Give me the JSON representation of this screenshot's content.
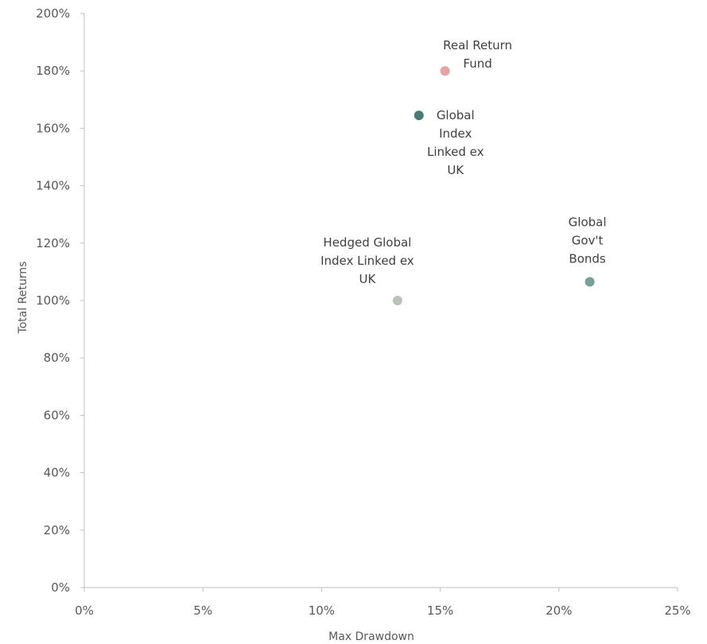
{
  "chart_data": {
    "type": "scatter",
    "title": "",
    "xlabel": "Max Drawdown",
    "ylabel": "Total Returns",
    "xlim": [
      0,
      25
    ],
    "ylim": [
      0,
      200
    ],
    "x_ticks": [
      0,
      5,
      10,
      15,
      20,
      25
    ],
    "x_tick_labels": [
      "0%",
      "5%",
      "10%",
      "15%",
      "20%",
      "25%"
    ],
    "y_ticks": [
      0,
      20,
      40,
      60,
      80,
      100,
      120,
      140,
      160,
      180,
      200
    ],
    "y_tick_labels": [
      "0%",
      "20%",
      "40%",
      "60%",
      "80%",
      "100%",
      "120%",
      "140%",
      "160%",
      "180%",
      "200%"
    ],
    "grid": false,
    "legend": "none",
    "points": [
      {
        "label_lines": [
          "Real Return",
          "Fund"
        ],
        "x": 15.2,
        "y": 180,
        "color": "#e6a3a3",
        "label_position": "top-right",
        "label_color": "#404040"
      },
      {
        "label_lines": [
          "Global",
          "Index",
          "Linked ex",
          "UK"
        ],
        "x": 14.1,
        "y": 164.5,
        "color": "#4a7a72",
        "label_position": "right-below",
        "label_color": "#404040"
      },
      {
        "label_lines": [
          "Global",
          "Gov't",
          "Bonds"
        ],
        "x": 21.3,
        "y": 106.5,
        "color": "#7a9e98",
        "label_position": "above",
        "label_color": "#404040"
      },
      {
        "label_lines": [
          "Hedged Global",
          "Index Linked ex",
          "UK"
        ],
        "x": 13.2,
        "y": 100,
        "color": "#b9c2b8",
        "label_position": "above-left",
        "label_color": "#1a1a1a"
      }
    ]
  }
}
